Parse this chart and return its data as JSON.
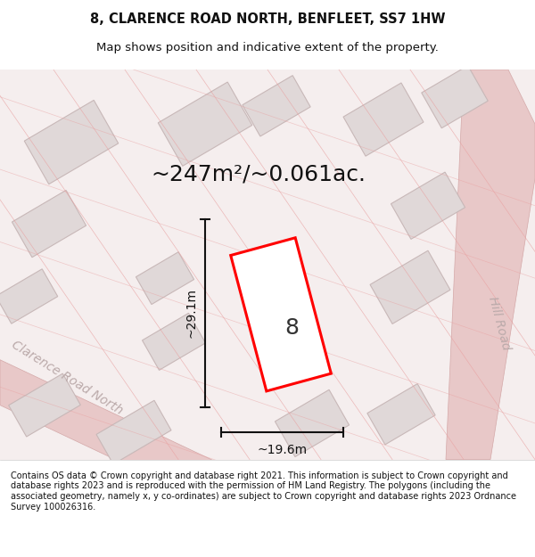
{
  "title": "8, CLARENCE ROAD NORTH, BENFLEET, SS7 1HW",
  "subtitle": "Map shows position and indicative extent of the property.",
  "area_text": "~247m²/~0.061ac.",
  "width_label": "~19.6m",
  "height_label": "~29.1m",
  "house_number": "8",
  "street_label_left": "Clarence Road North",
  "street_label_right": "Hill Road",
  "footer_text": "Contains OS data © Crown copyright and database right 2021. This information is subject to Crown copyright and database rights 2023 and is reproduced with the permission of HM Land Registry. The polygons (including the associated geometry, namely x, y co-ordinates) are subject to Crown copyright and database rights 2023 Ordnance Survey 100026316.",
  "bg_color": "#f5f0f0",
  "map_bg_color": "#f7f2f2",
  "plot_color": "#ff0000",
  "building_fill": "#e8e0e0",
  "road_color": "#e8d0d0",
  "line_color": "#222222",
  "footer_bg": "#ffffff",
  "title_color": "#111111"
}
